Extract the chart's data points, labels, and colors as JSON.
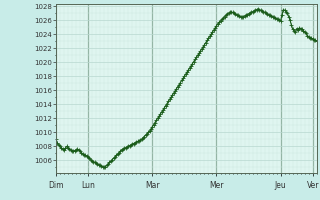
{
  "background_color": "#c8ece8",
  "plot_bg_color": "#dff5f0",
  "grid_color_major": "#b8d8d0",
  "grid_color_minor": "#cce8e0",
  "line_color": "#1a5c1a",
  "line_width": 0.8,
  "marker": "+",
  "marker_size": 2.5,
  "marker_edge_width": 0.6,
  "tick_label_color": "#333333",
  "ytick_start": 1005,
  "ytick_end": 1027,
  "ytick_step": 2,
  "ylim_min": 1004.2,
  "ylim_max": 1028.3,
  "x_day_labels": [
    "Dim",
    "Lun",
    "Mar",
    "Mer",
    "Jeu",
    "Ver"
  ],
  "x_day_positions": [
    0,
    24,
    72,
    120,
    168,
    192
  ],
  "day_line_color": "#446644",
  "pressure_data": [
    1009.0,
    1008.5,
    1008.2,
    1008.0,
    1007.8,
    1007.6,
    1007.5,
    1007.7,
    1008.0,
    1007.8,
    1007.6,
    1007.5,
    1007.4,
    1007.3,
    1007.4,
    1007.5,
    1007.6,
    1007.5,
    1007.3,
    1007.1,
    1006.9,
    1006.8,
    1006.7,
    1006.6,
    1006.5,
    1006.3,
    1006.1,
    1005.9,
    1005.8,
    1005.7,
    1005.6,
    1005.5,
    1005.4,
    1005.3,
    1005.2,
    1005.1,
    1005.0,
    1005.1,
    1005.3,
    1005.5,
    1005.7,
    1005.9,
    1006.1,
    1006.3,
    1006.5,
    1006.7,
    1006.9,
    1007.1,
    1007.3,
    1007.5,
    1007.6,
    1007.7,
    1007.8,
    1007.9,
    1008.0,
    1008.1,
    1008.2,
    1008.3,
    1008.4,
    1008.5,
    1008.6,
    1008.7,
    1008.8,
    1008.9,
    1009.0,
    1009.2,
    1009.4,
    1009.6,
    1009.8,
    1010.0,
    1010.2,
    1010.5,
    1010.8,
    1011.1,
    1011.4,
    1011.7,
    1012.0,
    1012.3,
    1012.6,
    1012.9,
    1013.2,
    1013.5,
    1013.8,
    1014.1,
    1014.4,
    1014.7,
    1015.0,
    1015.3,
    1015.6,
    1015.9,
    1016.2,
    1016.5,
    1016.8,
    1017.1,
    1017.4,
    1017.7,
    1018.0,
    1018.3,
    1018.6,
    1018.9,
    1019.2,
    1019.5,
    1019.8,
    1020.1,
    1020.4,
    1020.7,
    1021.0,
    1021.3,
    1021.6,
    1021.9,
    1022.2,
    1022.5,
    1022.8,
    1023.1,
    1023.4,
    1023.7,
    1024.0,
    1024.3,
    1024.6,
    1024.9,
    1025.2,
    1025.5,
    1025.7,
    1025.9,
    1026.1,
    1026.3,
    1026.5,
    1026.7,
    1026.9,
    1027.0,
    1027.1,
    1027.2,
    1027.1,
    1027.0,
    1026.9,
    1026.8,
    1026.7,
    1026.6,
    1026.5,
    1026.4,
    1026.5,
    1026.6,
    1026.7,
    1026.8,
    1026.9,
    1027.0,
    1027.1,
    1027.2,
    1027.3,
    1027.4,
    1027.5,
    1027.6,
    1027.5,
    1027.4,
    1027.3,
    1027.2,
    1027.1,
    1027.0,
    1026.9,
    1026.8,
    1026.7,
    1026.6,
    1026.5,
    1026.4,
    1026.3,
    1026.2,
    1026.1,
    1026.0,
    1025.9,
    1026.8,
    1027.5,
    1027.4,
    1027.2,
    1027.0,
    1026.5,
    1026.0,
    1025.3,
    1024.7,
    1024.5,
    1024.3,
    1024.8,
    1024.6,
    1024.9,
    1024.8,
    1024.7,
    1024.5,
    1024.3,
    1024.1,
    1023.8,
    1023.6,
    1023.5,
    1023.4,
    1023.3,
    1023.2,
    1023.1,
    1023.0
  ]
}
